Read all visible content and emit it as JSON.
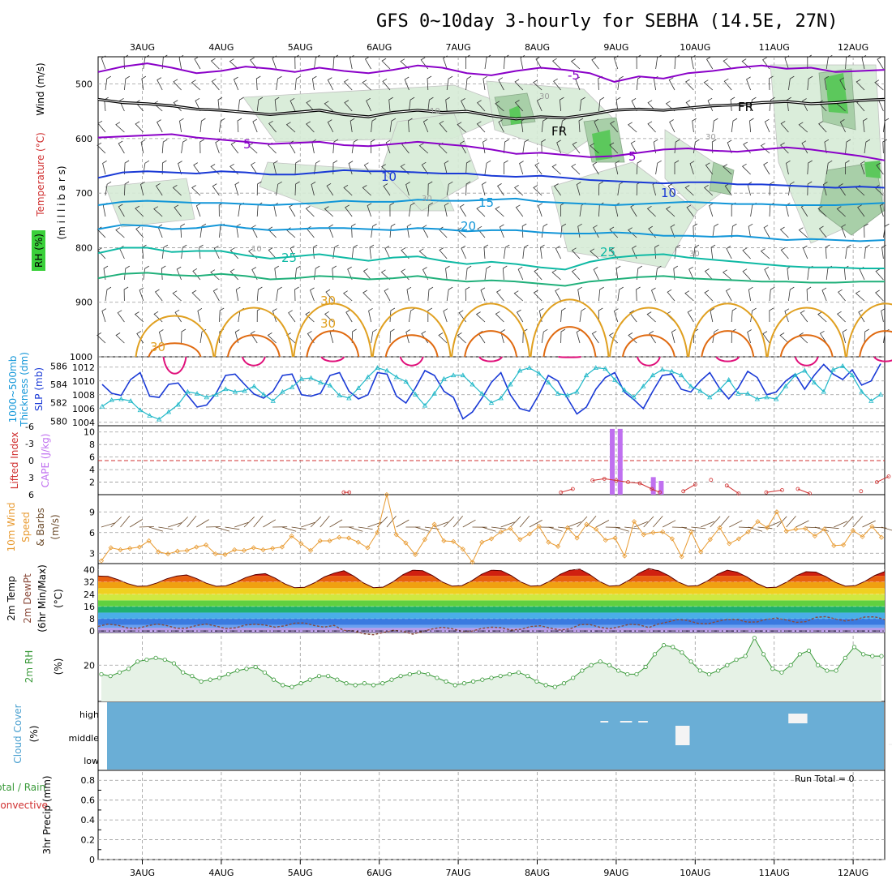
{
  "title": "GFS 0~10day 3-hourly for SEBHA (14.5E, 27N)",
  "colors": {
    "purple": "#8a00c8",
    "black": "#000000",
    "blue": "#1a3ad6",
    "cyan": "#1296d8",
    "teal": "#0fb9a4",
    "green": "#20b07a",
    "orange": "#e0a020",
    "darkorange": "#e06a10",
    "magenta": "#e0107a",
    "rh_light": "#d6ecd6",
    "rh_mid": "#a8cfa8",
    "rh_dark": "#5cc85c",
    "slp": "#1a3ad6",
    "thick": "#20b8c8",
    "li": "#d03030",
    "cape": "#c070f0",
    "wind": "#e89a30",
    "rh2m": "#3a9a3a",
    "cloud": "#6aaed6",
    "grid": "#9a9a9a"
  },
  "chart_data": [
    {
      "panel": "upper-air",
      "type": "contour",
      "ylabel_parts": [
        "Wind (m/s)",
        "Temperature (°C)",
        "(m i l l i b a r s)",
        "RH (%)"
      ],
      "y_ticks": [
        "500",
        "600",
        "700",
        "800",
        "900",
        "1000"
      ],
      "ylim": [
        450,
        1000
      ],
      "x_dates": [
        "3AUG",
        "4AUG",
        "5AUG",
        "6AUG",
        "7AUG",
        "8AUG",
        "9AUG",
        "10AUG",
        "11AUG",
        "12AUG"
      ],
      "contour_labels": [
        {
          "text": "-5",
          "color": "purple"
        },
        {
          "text": "5",
          "color": "purple"
        },
        {
          "text": "5",
          "color": "purple"
        },
        {
          "text": "FR",
          "color": "black"
        },
        {
          "text": "FR",
          "color": "black"
        },
        {
          "text": "10",
          "color": "blue"
        },
        {
          "text": "10",
          "color": "blue"
        },
        {
          "text": "15",
          "color": "cyan"
        },
        {
          "text": "20",
          "color": "cyan"
        },
        {
          "text": "25",
          "color": "teal"
        },
        {
          "text": "25",
          "color": "teal"
        },
        {
          "text": "30",
          "color": "orange"
        },
        {
          "text": "30",
          "color": "orange"
        },
        {
          "text": "30",
          "color": "orange"
        },
        {
          "text": "10",
          "color": "grid"
        },
        {
          "text": "30",
          "color": "grid"
        },
        {
          "text": "30",
          "color": "grid"
        },
        {
          "text": "30",
          "color": "grid"
        },
        {
          "text": "30",
          "color": "grid"
        },
        {
          "text": "10",
          "color": "grid"
        }
      ],
      "isotherms": [
        {
          "level": "-5",
          "color": "purple",
          "p": [
            478,
            468,
            462,
            470,
            480,
            476,
            468,
            472,
            478,
            470,
            476,
            480,
            474,
            466,
            470,
            480,
            484,
            476,
            470,
            474,
            480,
            496,
            486,
            490,
            480,
            476,
            470,
            466,
            472,
            470,
            478,
            476,
            474
          ]
        },
        {
          "level": "FR",
          "color": "black",
          "p": [
            528,
            534,
            536,
            540,
            546,
            548,
            552,
            556,
            552,
            548,
            556,
            560,
            552,
            548,
            552,
            550,
            558,
            564,
            560,
            562,
            556,
            548,
            546,
            548,
            544,
            540,
            538,
            534,
            532,
            536,
            534,
            530,
            528
          ]
        },
        {
          "level": "5",
          "color": "purple",
          "p": [
            598,
            596,
            594,
            592,
            598,
            602,
            606,
            610,
            608,
            606,
            612,
            614,
            610,
            606,
            610,
            614,
            620,
            628,
            626,
            630,
            634,
            632,
            626,
            620,
            618,
            622,
            624,
            620,
            616,
            620,
            626,
            632,
            640
          ]
        },
        {
          "level": "10",
          "color": "blue",
          "p": [
            672,
            662,
            660,
            662,
            664,
            660,
            662,
            666,
            666,
            662,
            658,
            660,
            660,
            662,
            664,
            664,
            668,
            670,
            668,
            672,
            676,
            678,
            680,
            682,
            680,
            680,
            684,
            684,
            686,
            688,
            690,
            688,
            690
          ]
        },
        {
          "level": "15",
          "color": "cyan",
          "p": [
            722,
            716,
            714,
            716,
            718,
            718,
            720,
            722,
            720,
            718,
            714,
            716,
            716,
            712,
            714,
            714,
            712,
            710,
            716,
            718,
            720,
            722,
            720,
            718,
            716,
            718,
            720,
            720,
            722,
            722,
            722,
            720,
            718
          ]
        },
        {
          "level": "20",
          "color": "cyan",
          "p": [
            766,
            758,
            760,
            766,
            764,
            758,
            764,
            768,
            766,
            764,
            764,
            766,
            768,
            764,
            766,
            770,
            768,
            768,
            772,
            774,
            774,
            772,
            774,
            778,
            778,
            780,
            778,
            782,
            786,
            784,
            786,
            788,
            786
          ]
        },
        {
          "level": "25",
          "color": "teal",
          "p": [
            810,
            800,
            800,
            808,
            806,
            806,
            814,
            820,
            816,
            812,
            818,
            824,
            818,
            816,
            824,
            830,
            826,
            830,
            836,
            840,
            826,
            818,
            814,
            812,
            818,
            822,
            826,
            830,
            834,
            836,
            836,
            838,
            838
          ]
        },
        {
          "level": "25b",
          "color": "green",
          "p": [
            856,
            848,
            846,
            850,
            852,
            848,
            852,
            858,
            856,
            852,
            854,
            858,
            856,
            852,
            858,
            862,
            860,
            862,
            866,
            870,
            862,
            858,
            854,
            852,
            856,
            858,
            860,
            862,
            862,
            864,
            864,
            862,
            862
          ]
        }
      ],
      "lobes": [
        {
          "day": 0.0,
          "top": 900,
          "color": "orange"
        },
        {
          "day": 1.0,
          "top": 880,
          "color": "orange"
        },
        {
          "day": 2.0,
          "top": 870,
          "color": "orange"
        },
        {
          "day": 3.0,
          "top": 880,
          "color": "orange"
        },
        {
          "day": 4.0,
          "top": 870,
          "color": "orange"
        },
        {
          "day": 5.0,
          "top": 860,
          "color": "orange"
        },
        {
          "day": 6.0,
          "top": 880,
          "color": "orange"
        },
        {
          "day": 7.0,
          "top": 870,
          "color": "orange"
        },
        {
          "day": 8.0,
          "top": 880,
          "color": "orange"
        },
        {
          "day": 9.0,
          "top": 870,
          "color": "orange"
        }
      ]
    },
    {
      "panel": "slp-thickness",
      "type": "line",
      "ylabel_left": [
        "1000~500mb",
        "Thickness (dm)"
      ],
      "ylabel_right": "SLP (mb)",
      "left_ticks": [
        "586",
        "584",
        "582",
        "580"
      ],
      "right_ticks": [
        "1012",
        "1010",
        "1008",
        "1006",
        "1004"
      ],
      "slp_ylim": [
        1003.5,
        1013.5
      ],
      "slp": [
        1009.5,
        1008.2,
        1007.9,
        1010.2,
        1011.2,
        1007.8,
        1007.6,
        1009.5,
        1009.7,
        1007.9,
        1006.2,
        1006.5,
        1008.2,
        1010.8,
        1011.0,
        1009.5,
        1008.1,
        1007.5,
        1008.5,
        1010.8,
        1011.0,
        1008.0,
        1007.8,
        1008.2,
        1010.8,
        1011.2,
        1008.5,
        1007.4,
        1008.0,
        1011.2,
        1011.0,
        1007.8,
        1006.8,
        1009.0,
        1011.5,
        1010.8,
        1008.5,
        1007.6,
        1004.5,
        1005.5,
        1007.5,
        1009.8,
        1011.2,
        1008.0,
        1006.0,
        1005.6,
        1008.0,
        1010.8,
        1010.0,
        1007.5,
        1005.2,
        1006.2,
        1008.8,
        1010.5,
        1011.2,
        1008.4,
        1007.3,
        1006.0,
        1008.5,
        1010.8,
        1011.0,
        1008.8,
        1008.4,
        1010.0,
        1011.2,
        1009.0,
        1007.4,
        1009.0,
        1011.4,
        1010.5,
        1008.0,
        1008.4,
        1010.0,
        1011.0,
        1008.8,
        1010.8,
        1012.4,
        1011.0,
        1010.2,
        1011.6,
        1009.4,
        1010.0,
        1012.5
      ],
      "thick_ylim": [
        579.5,
        587
      ],
      "thickness": [
        581.6,
        582.3,
        582.4,
        582.2,
        581.2,
        580.6,
        580.2,
        581.0,
        581.8,
        583.2,
        583.0,
        582.6,
        582.9,
        583.5,
        583.2,
        583.3,
        583.8,
        582.9,
        582.2,
        583.2,
        583.7,
        584.6,
        584.7,
        584.2,
        583.9,
        582.8,
        582.5,
        583.6,
        584.8,
        585.8,
        585.5,
        584.8,
        584.3,
        582.9,
        581.7,
        583.0,
        584.6,
        585.0,
        585.0,
        584.0,
        583.0,
        582.0,
        582.5,
        584.0,
        585.5,
        585.8,
        585.2,
        584.2,
        583.0,
        582.8,
        583.2,
        585.0,
        585.8,
        585.7,
        584.5,
        583.4,
        582.6,
        583.8,
        585.0,
        585.6,
        585.4,
        585.0,
        583.8,
        583.3,
        582.6,
        583.4,
        584.5,
        583.0,
        583.0,
        582.4,
        582.6,
        582.4,
        583.8,
        585.0,
        585.5,
        584.2,
        583.2,
        585.6,
        586.0,
        585.0,
        583.2,
        582.2,
        582.9
      ]
    },
    {
      "panel": "cape-li",
      "type": "bar+line",
      "ylabel_left": "Lifted Index",
      "ylabel_right": "CAPE (J/kg)",
      "li_ticks": [
        "-6",
        "-3",
        "0",
        "3",
        "6"
      ],
      "cape_ticks": [
        "10",
        "8",
        "6",
        "4",
        "2"
      ],
      "cape_bars": [
        {
          "day": 5.95,
          "value": 10.5
        },
        {
          "day": 6.05,
          "value": 10.5
        },
        {
          "day": 6.47,
          "value": 2.8
        },
        {
          "day": 6.57,
          "value": 2.2
        }
      ],
      "li_series": [
        {
          "day": 2.55,
          "li": 5.6
        },
        {
          "day": 2.62,
          "li": 5.6
        },
        {
          "day": 5.3,
          "li": 5.6
        },
        {
          "day": 5.45,
          "li": 5.0
        },
        {
          "day": 5.7,
          "li": 3.5
        },
        {
          "day": 5.85,
          "li": 3.2
        },
        {
          "day": 6.0,
          "li": 3.5
        },
        {
          "day": 6.15,
          "li": 3.8
        },
        {
          "day": 6.3,
          "li": 4.0
        },
        {
          "day": 6.45,
          "li": 5.0
        },
        {
          "day": 6.55,
          "li": 5.6
        },
        {
          "day": 6.85,
          "li": 5.4
        },
        {
          "day": 7.0,
          "li": 4.2
        },
        {
          "day": 7.2,
          "li": 3.4
        },
        {
          "day": 7.4,
          "li": 4.4
        },
        {
          "day": 7.55,
          "li": 5.8
        },
        {
          "day": 7.9,
          "li": 5.6
        },
        {
          "day": 8.1,
          "li": 5.2
        },
        {
          "day": 8.3,
          "li": 5.0
        },
        {
          "day": 8.45,
          "li": 5.8
        },
        {
          "day": 9.1,
          "li": 5.4
        },
        {
          "day": 9.3,
          "li": 3.8
        },
        {
          "day": 9.45,
          "li": 2.8
        },
        {
          "day": 9.65,
          "li": 2.6
        },
        {
          "day": 9.8,
          "li": 3.8
        },
        {
          "day": 9.92,
          "li": 5.6
        }
      ]
    },
    {
      "panel": "10m-wind",
      "type": "line",
      "ylabel": [
        "10m Wind",
        "Speed",
        "& Barbs",
        "(m/s)"
      ],
      "y_ticks": [
        "9",
        "6",
        "3"
      ],
      "ylim": [
        1.5,
        11.5
      ],
      "speed": [
        1.9,
        3.8,
        3.5,
        3.7,
        3.9,
        4.8,
        3.2,
        2.9,
        3.3,
        3.4,
        3.9,
        4.2,
        2.9,
        2.8,
        3.5,
        3.4,
        3.8,
        3.5,
        3.7,
        3.9,
        5.5,
        4.4,
        3.4,
        4.8,
        4.8,
        5.3,
        5.2,
        4.6,
        3.8,
        6.0,
        11.5,
        5.7,
        4.5,
        2.8,
        5.0,
        7.2,
        4.8,
        4.7,
        3.6,
        1.7,
        4.6,
        5.1,
        6.1,
        6.6,
        5.0,
        5.8,
        6.9,
        4.6,
        4.0,
        6.7,
        5.2,
        7.2,
        6.5,
        4.9,
        5.2,
        2.6,
        7.6,
        5.7,
        6.0,
        6.1,
        5.1,
        2.5,
        6.1,
        3.2,
        5.0,
        6.7,
        4.4,
        5.1,
        6.1,
        7.6,
        6.7,
        9.0,
        6.2,
        6.5,
        6.6,
        5.5,
        6.5,
        4.1,
        4.2,
        6.3,
        5.4,
        6.9,
        5.3
      ]
    },
    {
      "panel": "2m-temp",
      "type": "area",
      "ylabel": [
        "2m Temp",
        "2m DewPt",
        "(6hr Min/Max)",
        "(°C)"
      ],
      "y_ticks": [
        "40",
        "32",
        "24",
        "16",
        "8",
        "0"
      ],
      "ylim": [
        -1,
        44
      ],
      "temp_min": [
        29,
        29,
        28,
        28,
        29,
        29,
        29,
        29,
        28,
        29
      ],
      "temp_max": [
        36,
        37,
        38,
        40,
        40,
        40,
        41,
        40,
        39,
        39
      ],
      "dewpt": [
        3,
        3,
        4,
        -1,
        1,
        2,
        3,
        6,
        7,
        8
      ]
    },
    {
      "panel": "2m-rh",
      "type": "area",
      "ylabel": [
        "2m RH",
        "(%)"
      ],
      "y_ticks": [
        "20"
      ],
      "ylim": [
        0,
        38
      ],
      "rh": [
        15,
        14,
        16,
        18,
        22,
        23,
        24,
        23,
        21,
        16,
        14,
        11,
        12,
        13,
        15,
        17,
        18,
        19,
        16,
        12,
        9,
        8,
        10,
        12,
        14,
        14,
        12,
        10,
        9,
        10,
        9,
        10,
        12,
        14,
        15,
        16,
        15,
        13,
        11,
        9,
        10,
        11,
        12,
        13,
        14,
        15,
        16,
        14,
        11,
        9,
        8,
        10,
        13,
        17,
        20,
        22,
        20,
        17,
        15,
        15,
        19,
        26,
        31,
        30,
        27,
        22,
        17,
        15,
        17,
        20,
        23,
        25,
        35,
        26,
        18,
        16,
        20,
        26,
        28,
        20,
        17,
        17,
        24,
        30,
        26,
        25,
        25
      ]
    },
    {
      "panel": "cloud-cover",
      "type": "bar",
      "ylabel": [
        "Cloud Cover",
        "(%)"
      ],
      "levels": [
        "high",
        "middle",
        "low"
      ],
      "high_spans": [
        [
          5.8,
          5.9
        ],
        [
          6.05,
          6.2
        ],
        [
          6.28,
          6.4
        ],
        [
          8.18,
          8.42
        ],
        [
          9.95,
          10.05
        ],
        [
          10.12,
          10.3
        ]
      ],
      "middle_spans": [
        [
          6.75,
          6.93
        ],
        [
          9.45,
          9.85
        ]
      ]
    },
    {
      "panel": "precip",
      "type": "bar",
      "ylabel": [
        "3hr Precip (mm)",
        "Total / Rain",
        "Convective"
      ],
      "y_ticks": [
        "0.8",
        "0.6",
        "0.4",
        "0.2",
        "0"
      ],
      "ylim": [
        0,
        0.9
      ],
      "values": [],
      "run_total": "Run Total = 0"
    }
  ]
}
